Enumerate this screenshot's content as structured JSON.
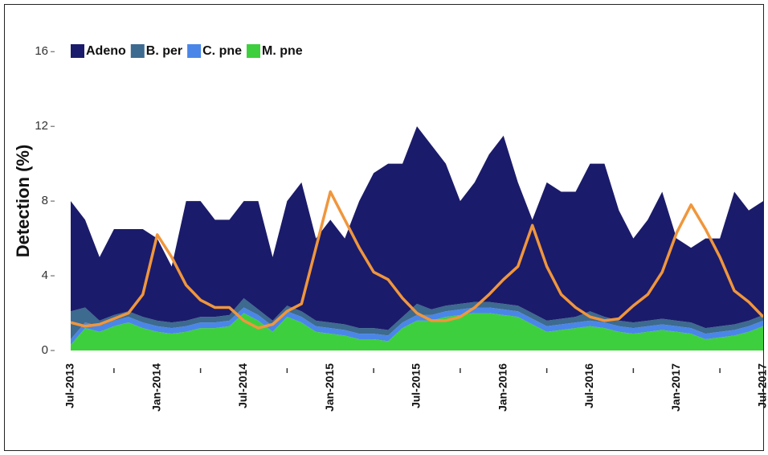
{
  "chart_data": {
    "type": "stacked-area",
    "y_label": "Detection (%)",
    "categories": [
      "Jul-2013",
      null,
      null,
      null,
      null,
      null,
      "Jan-2014",
      null,
      null,
      null,
      null,
      null,
      "Jul-2014",
      null,
      null,
      null,
      null,
      null,
      "Jan-2015",
      null,
      null,
      null,
      null,
      null,
      "Jul-2015",
      null,
      null,
      null,
      null,
      null,
      "Jan-2016",
      null,
      null,
      null,
      null,
      null,
      "Jul-2016",
      null,
      null,
      null,
      null,
      null,
      "Jan-2017",
      null,
      null,
      null,
      null,
      null,
      "Jul-2017"
    ],
    "ylim": [
      0,
      17
    ],
    "yticks": [
      0,
      4,
      8,
      12,
      16
    ],
    "series": [
      {
        "name": "Adeno",
        "color": "#1b1b6b",
        "values": [
          5.9,
          4.7,
          3.4,
          4.6,
          4.4,
          4.7,
          4.4,
          3.0,
          6.4,
          6.2,
          5.2,
          5.1,
          5.2,
          5.8,
          3.4,
          5.6,
          6.9,
          4.4,
          5.5,
          4.6,
          6.8,
          8.3,
          8.9,
          8.2,
          9.5,
          8.8,
          7.6,
          5.5,
          6.4,
          7.9,
          9.0,
          6.6,
          5.0,
          7.4,
          6.8,
          6.7,
          7.9,
          8.2,
          5.9,
          4.5,
          5.4,
          6.8,
          4.4,
          4.0,
          4.8,
          4.7,
          7.1,
          5.9,
          6.1
        ]
      },
      {
        "name": "B. per",
        "color": "#3d6a8f",
        "values": [
          1.5,
          0.8,
          0.3,
          0.3,
          0.3,
          0.3,
          0.3,
          0.3,
          0.3,
          0.3,
          0.3,
          0.3,
          0.5,
          0.3,
          0.3,
          0.3,
          0.3,
          0.3,
          0.3,
          0.3,
          0.3,
          0.3,
          0.3,
          0.3,
          0.6,
          0.3,
          0.3,
          0.3,
          0.3,
          0.3,
          0.3,
          0.3,
          0.3,
          0.3,
          0.3,
          0.3,
          0.5,
          0.3,
          0.3,
          0.3,
          0.3,
          0.3,
          0.3,
          0.3,
          0.3,
          0.3,
          0.3,
          0.3,
          0.3
        ]
      },
      {
        "name": "C. pne",
        "color": "#4a86e8",
        "values": [
          0.3,
          0.3,
          0.3,
          0.3,
          0.3,
          0.3,
          0.3,
          0.3,
          0.3,
          0.3,
          0.3,
          0.3,
          0.3,
          0.3,
          0.3,
          0.3,
          0.3,
          0.3,
          0.3,
          0.3,
          0.3,
          0.3,
          0.3,
          0.3,
          0.3,
          0.3,
          0.3,
          0.3,
          0.3,
          0.3,
          0.3,
          0.3,
          0.3,
          0.3,
          0.3,
          0.3,
          0.3,
          0.3,
          0.3,
          0.3,
          0.3,
          0.3,
          0.3,
          0.3,
          0.3,
          0.3,
          0.3,
          0.3,
          0.3
        ]
      },
      {
        "name": "M. pne",
        "color": "#3ecf3e",
        "values": [
          0.3,
          1.2,
          1.0,
          1.3,
          1.5,
          1.2,
          1.0,
          0.9,
          1.0,
          1.2,
          1.2,
          1.3,
          2.0,
          1.6,
          1.0,
          1.8,
          1.5,
          1.0,
          0.9,
          0.8,
          0.6,
          0.6,
          0.5,
          1.2,
          1.6,
          1.6,
          1.8,
          1.9,
          2.0,
          2.0,
          1.9,
          1.8,
          1.4,
          1.0,
          1.1,
          1.2,
          1.3,
          1.2,
          1.0,
          0.9,
          1.0,
          1.1,
          1.0,
          0.9,
          0.6,
          0.7,
          0.8,
          1.0,
          1.3
        ]
      }
    ],
    "line": {
      "color": "#f0963c",
      "values": [
        1.5,
        1.3,
        1.4,
        1.7,
        2.0,
        3.0,
        6.2,
        5.0,
        3.5,
        2.7,
        2.3,
        2.3,
        1.6,
        1.2,
        1.4,
        2.1,
        2.5,
        5.5,
        8.5,
        7.0,
        5.5,
        4.2,
        3.8,
        2.8,
        2.0,
        1.6,
        1.6,
        1.8,
        2.3,
        3.0,
        3.8,
        4.5,
        6.7,
        4.5,
        3.0,
        2.3,
        1.8,
        1.6,
        1.7,
        2.4,
        3.0,
        4.2,
        6.3,
        7.8,
        6.5,
        5.0,
        3.2,
        2.6,
        1.8
      ]
    }
  }
}
